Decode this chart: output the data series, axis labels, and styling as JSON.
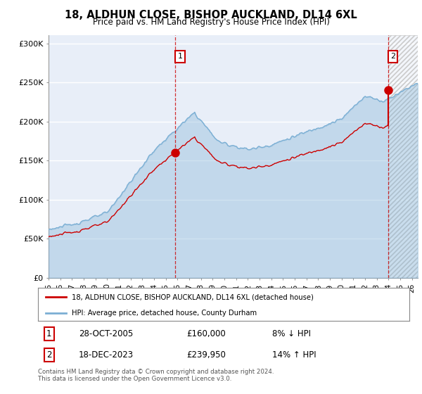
{
  "title": "18, ALDHUN CLOSE, BISHOP AUCKLAND, DL14 6XL",
  "subtitle": "Price paid vs. HM Land Registry's House Price Index (HPI)",
  "ylim": [
    0,
    310000
  ],
  "yticks": [
    0,
    50000,
    100000,
    150000,
    200000,
    250000,
    300000
  ],
  "ytick_labels": [
    "£0",
    "£50K",
    "£100K",
    "£150K",
    "£200K",
    "£250K",
    "£300K"
  ],
  "background_color": "#ffffff",
  "plot_bg_color": "#e8eef8",
  "grid_color": "#ffffff",
  "hpi_color": "#7bafd4",
  "price_color": "#cc0000",
  "sale1_price": 160000,
  "sale1_x": 2005.82,
  "sale1_date": "28-OCT-2005",
  "sale1_pct": "8% ↓ HPI",
  "sale2_price": 239950,
  "sale2_x": 2023.96,
  "sale2_date": "18-DEC-2023",
  "sale2_pct": "14% ↑ HPI",
  "legend_line1": "18, ALDHUN CLOSE, BISHOP AUCKLAND, DL14 6XL (detached house)",
  "legend_line2": "HPI: Average price, detached house, County Durham",
  "footer": "Contains HM Land Registry data © Crown copyright and database right 2024.\nThis data is licensed under the Open Government Licence v3.0.",
  "x_start": 1995.0,
  "x_end": 2026.5,
  "xtick_years": [
    1995,
    1996,
    1997,
    1998,
    1999,
    2000,
    2001,
    2002,
    2003,
    2004,
    2005,
    2006,
    2007,
    2008,
    2009,
    2010,
    2011,
    2012,
    2013,
    2014,
    2015,
    2016,
    2017,
    2018,
    2019,
    2020,
    2021,
    2022,
    2023,
    2024,
    2025,
    2026
  ]
}
